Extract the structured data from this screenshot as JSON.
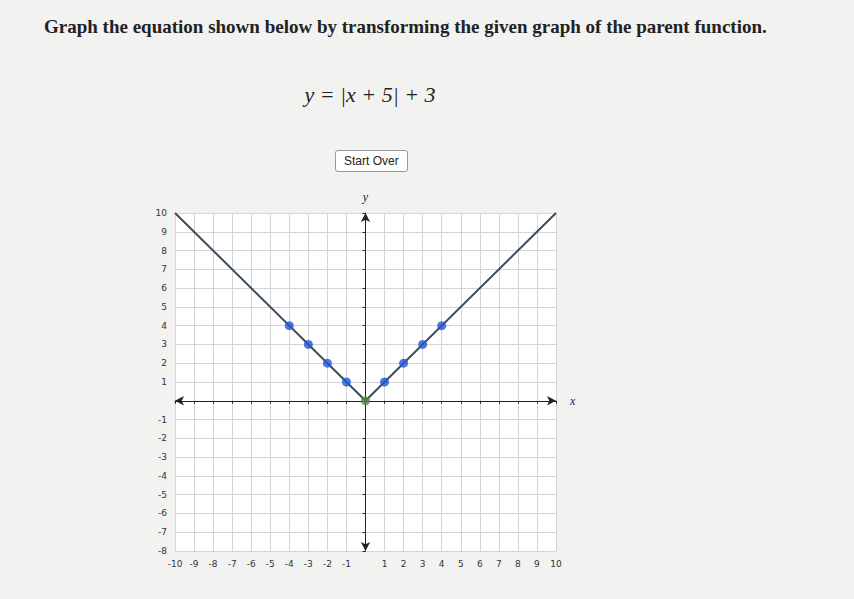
{
  "chart_data": {
    "type": "line",
    "title": "Graph the equation shown below by transforming the given graph of the parent function.",
    "subtitle": "y = |x + 5| + 3",
    "annotations": [
      "Start Over"
    ],
    "x_label": "x",
    "y_label": "y",
    "xlim": [
      -10,
      10
    ],
    "ylim": [
      -8,
      10
    ],
    "xticks": [
      -10,
      -9,
      -8,
      -7,
      -6,
      -5,
      -4,
      -3,
      -2,
      -1,
      1,
      2,
      3,
      4,
      5,
      6,
      7,
      8,
      9,
      10
    ],
    "yticks": [
      -8,
      -7,
      -6,
      -5,
      -4,
      -3,
      -2,
      -1,
      1,
      2,
      3,
      4,
      5,
      6,
      7,
      8,
      9,
      10
    ],
    "grid": true,
    "series": [
      {
        "type": "line",
        "color": "#3b4b5c",
        "marker": "none",
        "x": [
          -10,
          0,
          10
        ],
        "values": [
          10,
          0,
          10
        ]
      },
      {
        "type": "scatter",
        "color": "#1f56d6",
        "marker": "circle",
        "x": [
          -4,
          -3,
          -2,
          -1,
          1,
          2,
          3,
          4
        ],
        "values": [
          4,
          3,
          2,
          1,
          1,
          2,
          3,
          4
        ]
      },
      {
        "type": "scatter",
        "color": "#4c8a3c",
        "marker": "circle",
        "x": [
          0
        ],
        "values": [
          0
        ]
      }
    ]
  }
}
